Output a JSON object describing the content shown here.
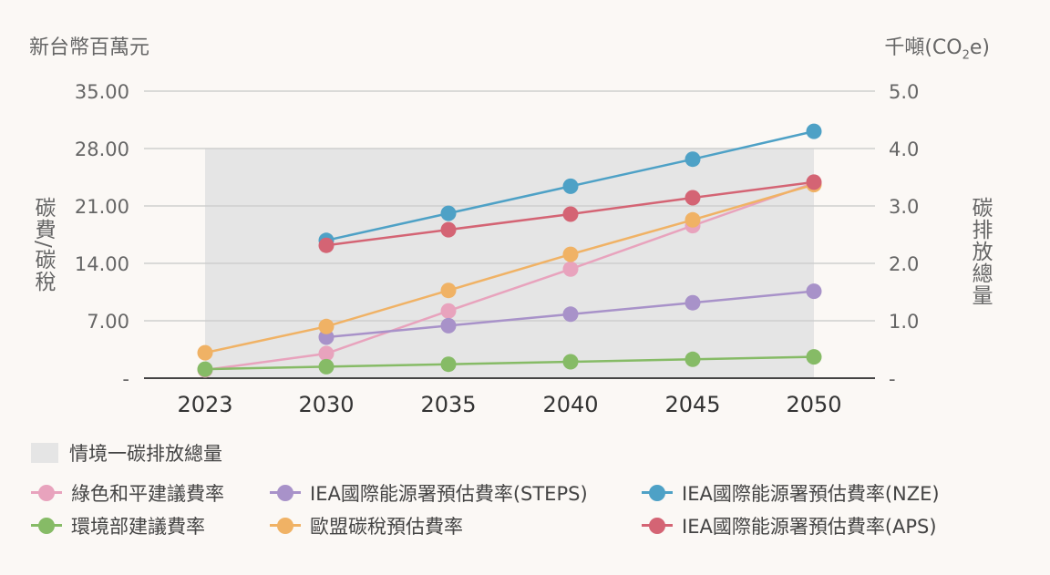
{
  "units": {
    "left": "新台幣百萬元",
    "right_prefix": "千噸(CO",
    "right_sub": "2",
    "right_suffix": "e)"
  },
  "axis_titles": {
    "left": "碳費/碳稅",
    "right": "碳排放總量"
  },
  "chart_data": {
    "type": "line",
    "categories": [
      "2023",
      "2030",
      "2035",
      "2040",
      "2045",
      "2050"
    ],
    "left_axis": {
      "ticks": [
        "-",
        "7.00",
        "14.00",
        "21.00",
        "28.00",
        "35.00"
      ],
      "range": [
        0,
        35
      ]
    },
    "right_axis": {
      "ticks": [
        "-",
        "1.0",
        "2.0",
        "3.0",
        "4.0",
        "5.0"
      ],
      "range": [
        0,
        5
      ]
    },
    "area": {
      "name": "情境一碳排放總量",
      "color": "#e5e5e5",
      "values": [
        4.0,
        4.0,
        4.0,
        4.0,
        4.0,
        4.0
      ],
      "axis": "right"
    },
    "series": [
      {
        "name": "綠色和平建議費率",
        "color": "#e8a3bd",
        "values": [
          1.0,
          3.0,
          8.2,
          13.3,
          18.6,
          23.8
        ]
      },
      {
        "name": "IEA國際能源署預估費率(STEPS)",
        "color": "#a892c9",
        "values": [
          null,
          5.0,
          6.4,
          7.8,
          9.2,
          10.6
        ]
      },
      {
        "name": "IEA國際能源署預估費率(NZE)",
        "color": "#4ea1c6",
        "values": [
          null,
          16.8,
          20.1,
          23.4,
          26.7,
          30.1
        ]
      },
      {
        "name": "環境部建議費率",
        "color": "#86bb66",
        "values": [
          1.1,
          1.4,
          1.7,
          2.0,
          2.3,
          2.6
        ]
      },
      {
        "name": "歐盟碳稅預估費率",
        "color": "#f0b265",
        "values": [
          3.1,
          6.3,
          10.7,
          15.1,
          19.3,
          23.6
        ]
      },
      {
        "name": "IEA國際能源署預估費率(APS)",
        "color": "#d46474",
        "values": [
          null,
          16.2,
          18.1,
          20.0,
          22.0,
          23.9
        ]
      }
    ],
    "grid": "horizontal",
    "legend_position": "bottom"
  }
}
